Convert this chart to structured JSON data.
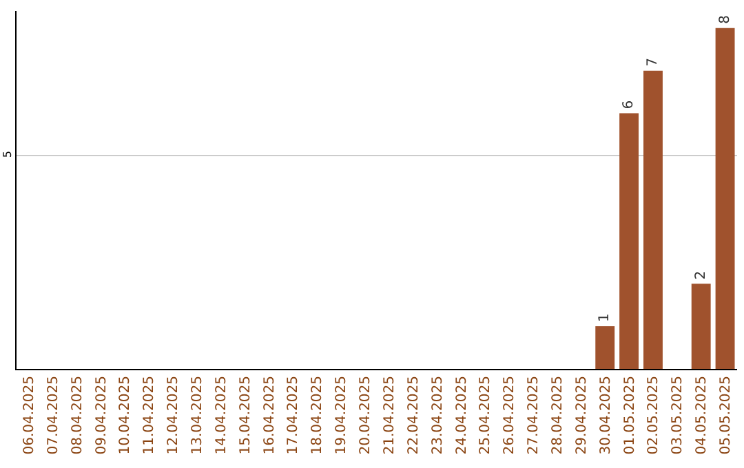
{
  "chart_data": {
    "type": "bar",
    "categories": [
      "06.04.2025",
      "07.04.2025",
      "08.04.2025",
      "09.04.2025",
      "10.04.2025",
      "11.04.2025",
      "12.04.2025",
      "13.04.2025",
      "14.04.2025",
      "15.04.2025",
      "16.04.2025",
      "17.04.2025",
      "18.04.2025",
      "19.04.2025",
      "20.04.2025",
      "21.04.2025",
      "22.04.2025",
      "23.04.2025",
      "24.04.2025",
      "25.04.2025",
      "26.04.2025",
      "27.04.2025",
      "28.04.2025",
      "29.04.2025",
      "30.04.2025",
      "01.05.2025",
      "02.05.2025",
      "03.05.2025",
      "04.05.2025",
      "05.05.2025"
    ],
    "values": [
      null,
      null,
      null,
      null,
      null,
      null,
      null,
      null,
      null,
      null,
      null,
      null,
      null,
      null,
      null,
      null,
      null,
      null,
      null,
      null,
      null,
      null,
      null,
      null,
      1,
      6,
      7,
      null,
      2,
      8
    ],
    "data_labels": true,
    "color": "#a0522d",
    "ylim": [
      0,
      8.4
    ],
    "yticks": [
      5
    ],
    "grid": "y"
  }
}
